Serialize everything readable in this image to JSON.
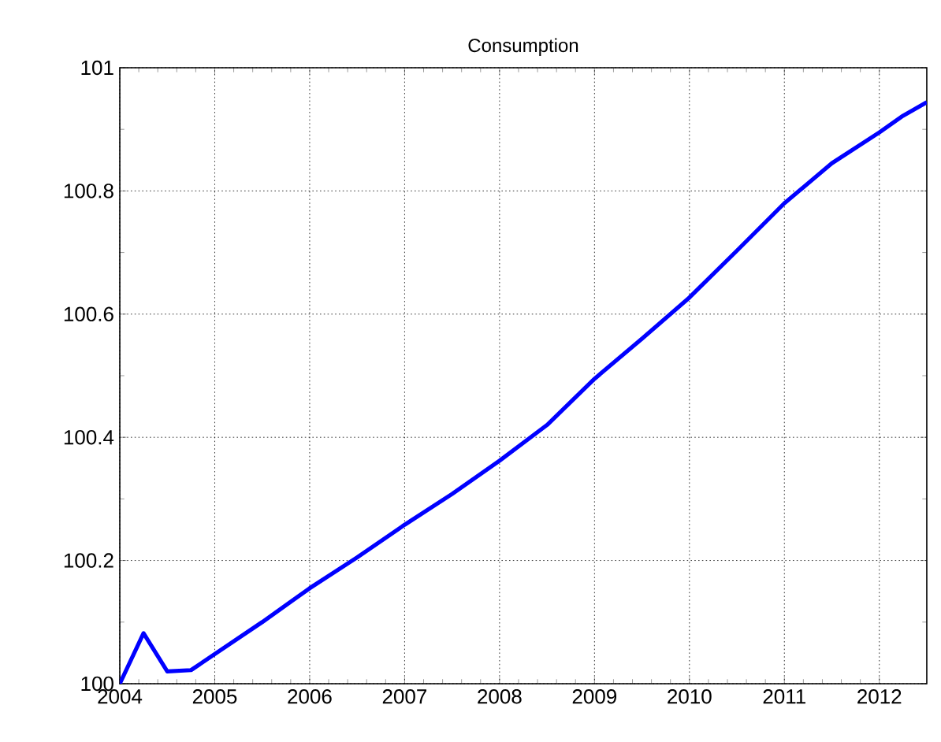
{
  "chart_data": {
    "type": "line",
    "title": "Consumption",
    "x": [
      2004,
      2004.25,
      2004.5,
      2004.75,
      2005,
      2005.5,
      2006,
      2006.5,
      2007,
      2007.5,
      2008,
      2008.5,
      2009,
      2009.5,
      2010,
      2010.5,
      2011,
      2011.5,
      2012,
      2012.25,
      2012.5
    ],
    "series": [
      {
        "color": "#0000ff",
        "values": [
          100,
          100.082,
          100.02,
          100.022,
          100.048,
          100.1,
          100.155,
          100.205,
          100.258,
          100.308,
          100.362,
          100.42,
          100.495,
          100.56,
          100.627,
          100.703,
          100.78,
          100.845,
          100.895,
          100.922,
          100.944
        ]
      }
    ],
    "xlim": [
      2004,
      2012.5
    ],
    "xticks": [
      2004,
      2005,
      2006,
      2007,
      2008,
      2009,
      2010,
      2011,
      2012
    ],
    "ylim": [
      100,
      101
    ],
    "yticks": [
      100,
      100.2,
      100.4,
      100.6,
      100.8,
      101
    ],
    "grid": true,
    "line_style": "solid",
    "marker": "none"
  }
}
